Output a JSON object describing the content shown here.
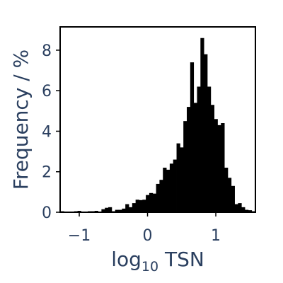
{
  "chart_data": {
    "type": "bar",
    "xlabel": "log",
    "xlabel_subscript": "10",
    "xlabel_suffix": " TSN",
    "ylabel": "Frequency / %",
    "xlim": [
      -1.28,
      1.58
    ],
    "ylim": [
      0,
      9.15
    ],
    "bin_width": 0.05,
    "xticks": [
      -1,
      0,
      1
    ],
    "yticks": [
      0,
      2,
      4,
      6,
      8
    ],
    "xtick_labels": [
      "−1",
      "0",
      "1"
    ],
    "ytick_labels": [
      "0",
      "2",
      "4",
      "6",
      "8"
    ],
    "bar_color": "#000000",
    "grid": false,
    "bins": [
      {
        "x": -1.25,
        "y": 0.05
      },
      {
        "x": -1.2,
        "y": 0.02
      },
      {
        "x": -1.15,
        "y": 0.02
      },
      {
        "x": -1.1,
        "y": 0.0
      },
      {
        "x": -1.05,
        "y": 0.05
      },
      {
        "x": -1.0,
        "y": 0.07
      },
      {
        "x": -0.95,
        "y": 0.03
      },
      {
        "x": -0.9,
        "y": 0.02
      },
      {
        "x": -0.85,
        "y": 0.05
      },
      {
        "x": -0.8,
        "y": 0.05
      },
      {
        "x": -0.75,
        "y": 0.07
      },
      {
        "x": -0.7,
        "y": 0.03
      },
      {
        "x": -0.65,
        "y": 0.15
      },
      {
        "x": -0.6,
        "y": 0.22
      },
      {
        "x": -0.55,
        "y": 0.25
      },
      {
        "x": -0.5,
        "y": 0.05
      },
      {
        "x": -0.45,
        "y": 0.12
      },
      {
        "x": -0.4,
        "y": 0.12
      },
      {
        "x": -0.35,
        "y": 0.18
      },
      {
        "x": -0.3,
        "y": 0.4
      },
      {
        "x": -0.25,
        "y": 0.25
      },
      {
        "x": -0.2,
        "y": 0.45
      },
      {
        "x": -0.15,
        "y": 0.62
      },
      {
        "x": -0.1,
        "y": 0.6
      },
      {
        "x": -0.05,
        "y": 0.62
      },
      {
        "x": 0.0,
        "y": 0.85
      },
      {
        "x": 0.05,
        "y": 0.95
      },
      {
        "x": 0.1,
        "y": 0.92
      },
      {
        "x": 0.15,
        "y": 1.4
      },
      {
        "x": 0.2,
        "y": 1.6
      },
      {
        "x": 0.25,
        "y": 2.2
      },
      {
        "x": 0.3,
        "y": 2.1
      },
      {
        "x": 0.35,
        "y": 2.4
      },
      {
        "x": 0.4,
        "y": 2.6
      },
      {
        "x": 0.45,
        "y": 3.4
      },
      {
        "x": 0.5,
        "y": 3.2
      },
      {
        "x": 0.55,
        "y": 4.5
      },
      {
        "x": 0.6,
        "y": 5.2
      },
      {
        "x": 0.65,
        "y": 7.4
      },
      {
        "x": 0.7,
        "y": 5.4
      },
      {
        "x": 0.75,
        "y": 6.2
      },
      {
        "x": 0.8,
        "y": 8.6
      },
      {
        "x": 0.85,
        "y": 7.8
      },
      {
        "x": 0.9,
        "y": 6.2
      },
      {
        "x": 0.95,
        "y": 5.3
      },
      {
        "x": 1.0,
        "y": 4.6
      },
      {
        "x": 1.05,
        "y": 4.3
      },
      {
        "x": 1.1,
        "y": 4.4
      },
      {
        "x": 1.15,
        "y": 2.2
      },
      {
        "x": 1.2,
        "y": 1.7
      },
      {
        "x": 1.25,
        "y": 1.3
      },
      {
        "x": 1.3,
        "y": 0.4
      },
      {
        "x": 1.35,
        "y": 0.45
      },
      {
        "x": 1.4,
        "y": 0.25
      },
      {
        "x": 1.45,
        "y": 0.12
      },
      {
        "x": 1.5,
        "y": 0.1
      },
      {
        "x": 1.55,
        "y": 0.05
      }
    ]
  }
}
